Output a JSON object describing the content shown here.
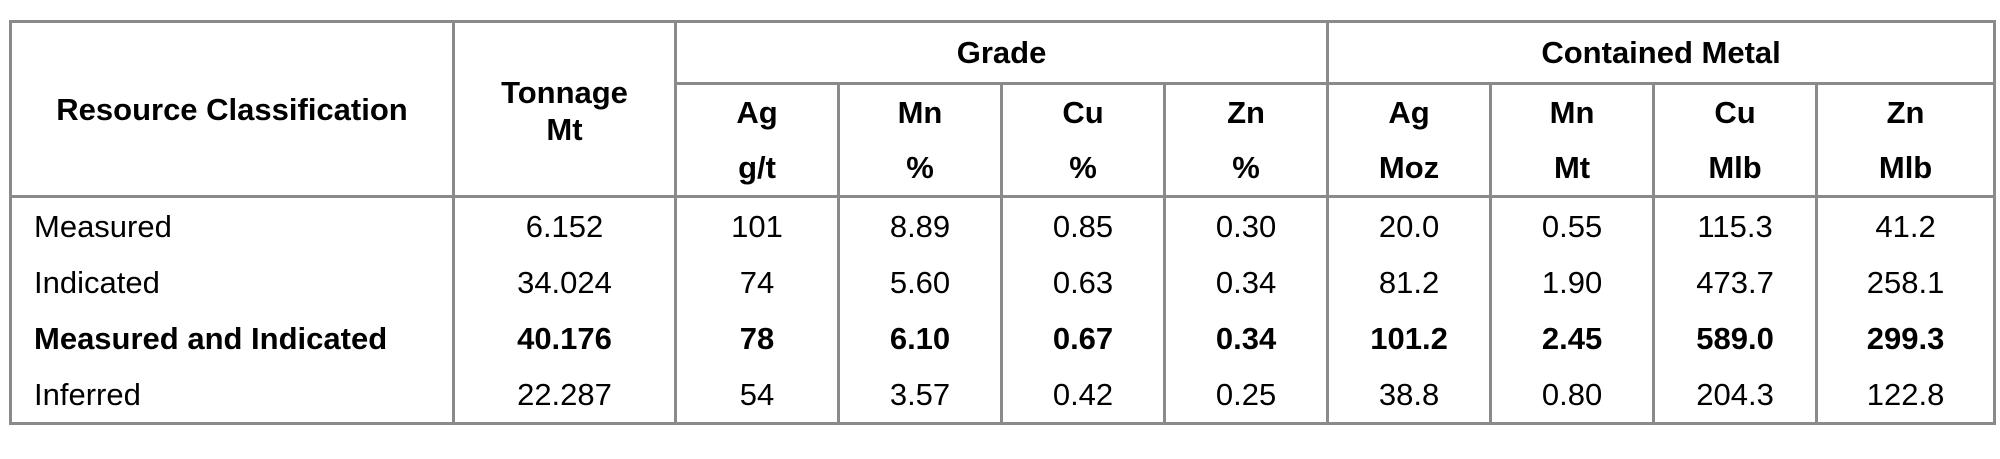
{
  "header": {
    "classification": "Resource Classification",
    "tonnage_label": "Tonnage",
    "tonnage_unit": "Mt",
    "grade_group": "Grade",
    "metal_group": "Contained Metal",
    "grade_cols": [
      {
        "symbol": "Ag",
        "unit": "g/t"
      },
      {
        "symbol": "Mn",
        "unit": "%"
      },
      {
        "symbol": "Cu",
        "unit": "%"
      },
      {
        "symbol": "Zn",
        "unit": "%"
      }
    ],
    "metal_cols": [
      {
        "symbol": "Ag",
        "unit": "Moz"
      },
      {
        "symbol": "Mn",
        "unit": "Mt"
      },
      {
        "symbol": "Cu",
        "unit": "Mlb"
      },
      {
        "symbol": "Zn",
        "unit": "Mlb"
      }
    ]
  },
  "rows": [
    {
      "classification": "Measured",
      "tonnage": "6.152",
      "grade": [
        "101",
        "8.89",
        "0.85",
        "0.30"
      ],
      "metal": [
        "20.0",
        "0.55",
        "115.3",
        "41.2"
      ]
    },
    {
      "classification": "Indicated",
      "tonnage": "34.024",
      "grade": [
        "74",
        "5.60",
        "0.63",
        "0.34"
      ],
      "metal": [
        "81.2",
        "1.90",
        "473.7",
        "258.1"
      ]
    },
    {
      "classification": "Measured and Indicated",
      "tonnage": "40.176",
      "grade": [
        "78",
        "6.10",
        "0.67",
        "0.34"
      ],
      "metal": [
        "101.2",
        "2.45",
        "589.0",
        "299.3"
      ]
    },
    {
      "classification": "Inferred",
      "tonnage": "22.287",
      "grade": [
        "54",
        "3.57",
        "0.42",
        "0.25"
      ],
      "metal": [
        "38.8",
        "0.80",
        "204.3",
        "122.8"
      ]
    }
  ]
}
